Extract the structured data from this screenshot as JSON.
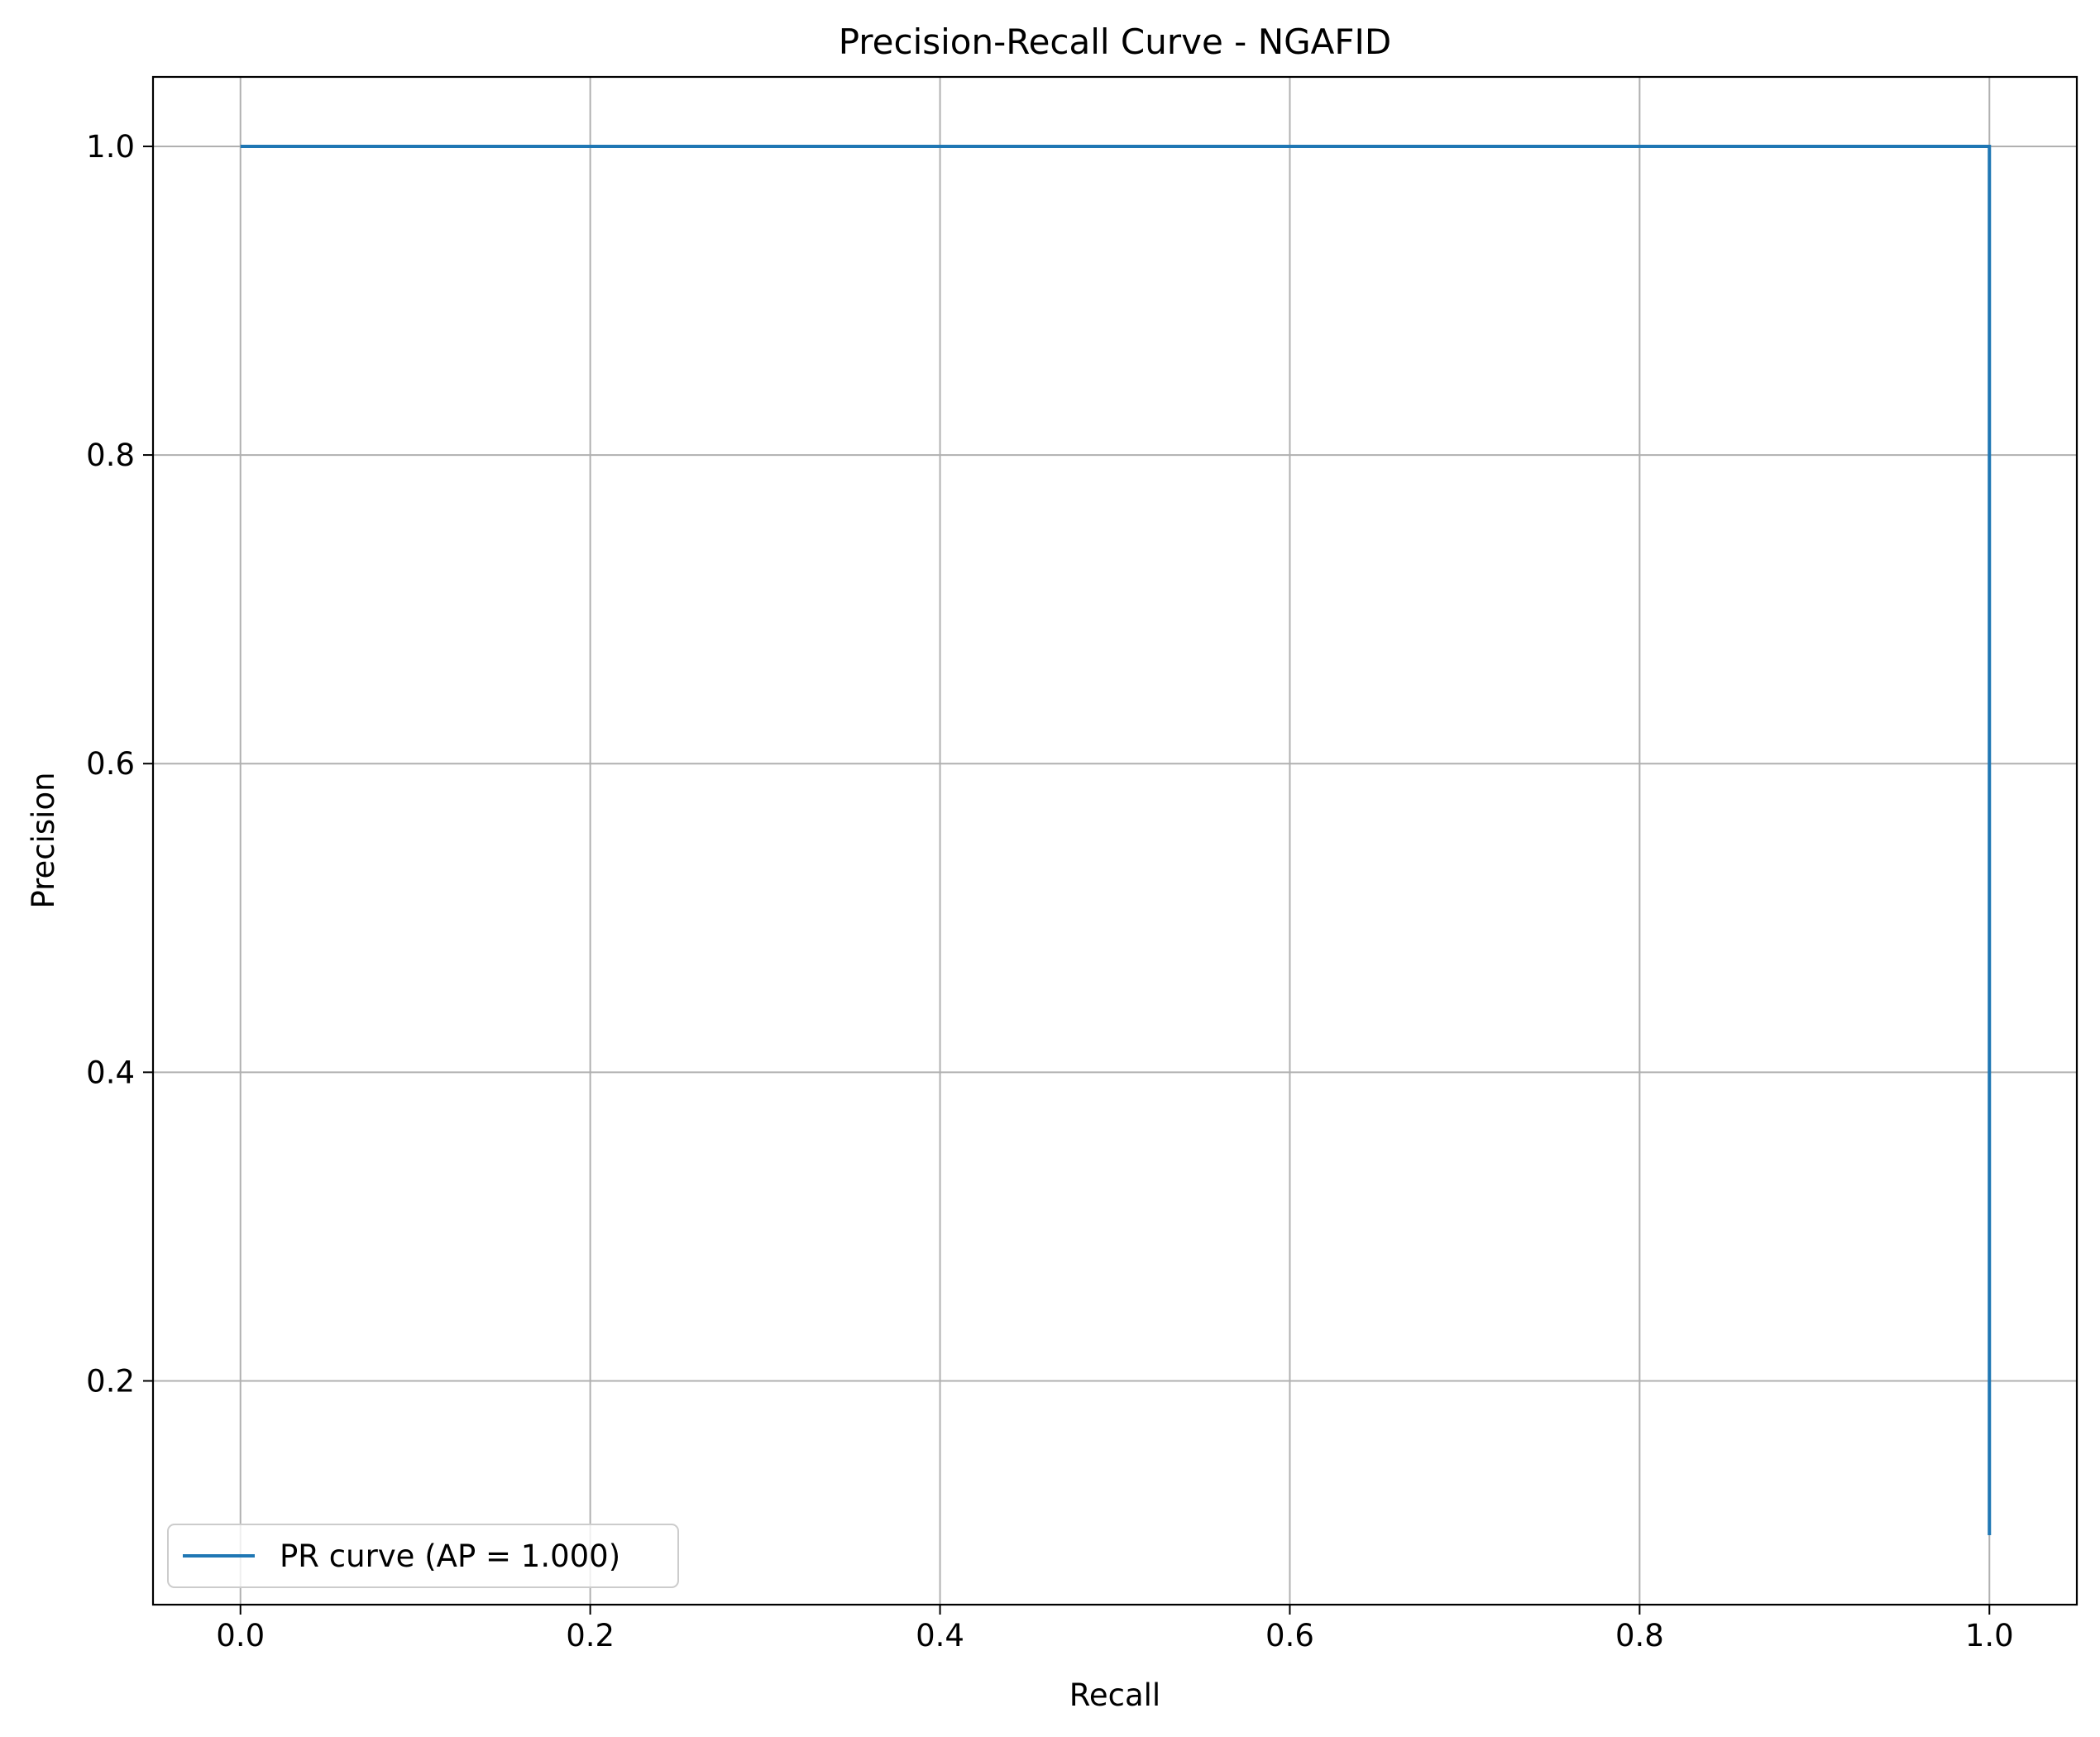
{
  "chart_data": {
    "type": "line",
    "title": "Precision-Recall Curve - NGAFID",
    "xlabel": "Recall",
    "ylabel": "Precision",
    "xlim": [
      -0.05,
      1.05
    ],
    "ylim": [
      0.055,
      1.045
    ],
    "xticks": [
      0.0,
      0.2,
      0.4,
      0.6,
      0.8,
      1.0
    ],
    "xtick_labels": [
      "0.0",
      "0.2",
      "0.4",
      "0.6",
      "0.8",
      "1.0"
    ],
    "yticks": [
      0.2,
      0.4,
      0.6,
      0.8,
      1.0
    ],
    "ytick_labels": [
      "0.2",
      "0.4",
      "0.6",
      "0.8",
      "1.0"
    ],
    "grid": true,
    "legend_position": "lower-left",
    "series": [
      {
        "name": "PR curve (AP = 1.000)",
        "color": "#1f77b4",
        "step": true,
        "x": [
          0.0,
          1.0,
          1.0
        ],
        "y": [
          1.0,
          1.0,
          0.1
        ]
      }
    ]
  }
}
